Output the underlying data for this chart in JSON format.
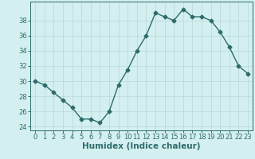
{
  "x": [
    0,
    1,
    2,
    3,
    4,
    5,
    6,
    7,
    8,
    9,
    10,
    11,
    12,
    13,
    14,
    15,
    16,
    17,
    18,
    19,
    20,
    21,
    22,
    23
  ],
  "y": [
    30,
    29.5,
    28.5,
    27.5,
    26.5,
    25.0,
    25.0,
    24.5,
    26.0,
    29.5,
    31.5,
    34.0,
    36.0,
    39.0,
    38.5,
    38.0,
    39.5,
    38.5,
    38.5,
    38.0,
    36.5,
    34.5,
    32.0,
    31.0
  ],
  "xlabel": "Humidex (Indice chaleur)",
  "ylim": [
    23.5,
    40.5
  ],
  "xlim": [
    -0.5,
    23.5
  ],
  "yticks": [
    24,
    26,
    28,
    30,
    32,
    34,
    36,
    38
  ],
  "xticks": [
    0,
    1,
    2,
    3,
    4,
    5,
    6,
    7,
    8,
    9,
    10,
    11,
    12,
    13,
    14,
    15,
    16,
    17,
    18,
    19,
    20,
    21,
    22,
    23
  ],
  "line_color": "#2e6b6b",
  "marker": "D",
  "marker_size": 2.5,
  "bg_color": "#d4efef",
  "grid_color": "#b8d8d8",
  "line_width": 1.0,
  "tick_labelsize": 6.0,
  "xlabel_fontsize": 7.5
}
